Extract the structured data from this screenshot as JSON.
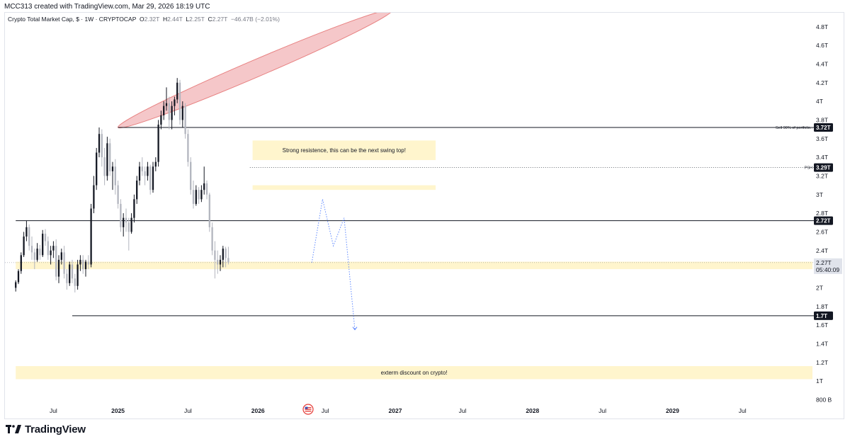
{
  "header": {
    "attribution": "MCC313 created with TradingView.com, Mar 29, 2026 18:19 UTC"
  },
  "legend": {
    "symbol": "Crypto Total Market Cap, $ · 1W · CRYPTOCAP",
    "open_key": "O",
    "open_value": "2.32T",
    "high_key": "H",
    "high_value": "2.44T",
    "low_key": "L",
    "low_value": "2.25T",
    "close_key": "C",
    "close_value": "2.27T",
    "change": "−46.47B (−2.01%)"
  },
  "colors": {
    "up": "#131722",
    "down": "#b2b5be",
    "zone": "#fff3c4",
    "ellipse": "#f5c2c4",
    "ellipse_stroke": "#e57373",
    "projection": "#2962ff"
  },
  "chart_data": {
    "type": "candlestick",
    "timeframe": "1W",
    "price_axis": {
      "ticks": [
        {
          "value": 4.8,
          "label": "4.8T"
        },
        {
          "value": 4.6,
          "label": "4.6T"
        },
        {
          "value": 4.4,
          "label": "4.4T"
        },
        {
          "value": 4.2,
          "label": "4.2T"
        },
        {
          "value": 4.0,
          "label": "4T"
        },
        {
          "value": 3.8,
          "label": "3.8T"
        },
        {
          "value": 3.6,
          "label": "3.6T"
        },
        {
          "value": 3.4,
          "label": "3.4T"
        },
        {
          "value": 3.2,
          "label": "3.2T"
        },
        {
          "value": 3.0,
          "label": "3T"
        },
        {
          "value": 2.8,
          "label": "2.8T"
        },
        {
          "value": 2.6,
          "label": "2.6T"
        },
        {
          "value": 2.4,
          "label": "2.4T"
        },
        {
          "value": 2.0,
          "label": "2T"
        },
        {
          "value": 1.8,
          "label": "1.8T"
        },
        {
          "value": 1.6,
          "label": "1.6T"
        },
        {
          "value": 1.4,
          "label": "1.4T"
        },
        {
          "value": 1.2,
          "label": "1.2T"
        },
        {
          "value": 1.0,
          "label": "1T"
        },
        {
          "value": 0.8,
          "label": "800 B"
        }
      ],
      "range": [
        0.75,
        4.95
      ]
    },
    "time_axis": {
      "ticks": [
        {
          "label": "Jul",
          "t": 14
        },
        {
          "label": "2025",
          "t": 38
        },
        {
          "label": "Jul",
          "t": 64
        },
        {
          "label": "2026",
          "t": 90
        },
        {
          "label": "Jul",
          "t": 115
        },
        {
          "label": "2027",
          "t": 141
        },
        {
          "label": "Jul",
          "t": 166
        },
        {
          "label": "2028",
          "t": 192
        },
        {
          "label": "Jul",
          "t": 218
        },
        {
          "label": "2029",
          "t": 244
        },
        {
          "label": "Jul",
          "t": 270
        }
      ],
      "range": [
        -4,
        296
      ]
    },
    "price_labels": [
      {
        "value": 3.72,
        "label": "3.72T",
        "note": "Sell 90% of portfolio.."
      },
      {
        "value": 3.29,
        "label": "3.29T",
        "note": "PSH"
      },
      {
        "value": 2.72,
        "label": "2.72T",
        "note": ""
      },
      {
        "value": 1.7,
        "label": "1.7T",
        "note": ""
      }
    ],
    "last_price": {
      "value": 2.27,
      "label": "2.27T",
      "countdown": "05:40:09"
    },
    "horizontal_lines": [
      {
        "value": 3.72,
        "t_start": 38,
        "style": "solid"
      },
      {
        "value": 3.29,
        "t_start": 87,
        "style": "dotted"
      },
      {
        "value": 2.72,
        "t_start": 0,
        "style": "solid"
      },
      {
        "value": 1.7,
        "t_start": 21,
        "style": "solid"
      }
    ],
    "zones": [
      {
        "top": 3.58,
        "bottom": 3.37,
        "t_start": 88,
        "t_end": 156,
        "text": "Strong resistence, this can be the next swing top!"
      },
      {
        "top": 3.1,
        "bottom": 3.05,
        "t_start": 88,
        "t_end": 156,
        "text": ""
      },
      {
        "top": 2.28,
        "bottom": 2.2,
        "t_start": 0,
        "t_end": 296,
        "text": ""
      },
      {
        "top": 1.16,
        "bottom": 1.02,
        "t_start": 0,
        "t_end": 296,
        "text": "exterm discount on crypto!"
      }
    ],
    "ellipse": {
      "t1": 38,
      "p1": 3.72,
      "t2": 140,
      "p2": 4.98
    },
    "projection_path": [
      [
        110,
        2.27
      ],
      [
        114,
        2.95
      ],
      [
        118,
        2.45
      ],
      [
        122,
        2.75
      ],
      [
        126,
        1.55
      ]
    ],
    "candles": [
      [
        2.0,
        2.08,
        1.96,
        2.06
      ],
      [
        2.06,
        2.2,
        2.04,
        2.18
      ],
      [
        2.18,
        2.38,
        2.15,
        2.35
      ],
      [
        2.35,
        2.6,
        2.33,
        2.55
      ],
      [
        2.55,
        2.72,
        2.5,
        2.65
      ],
      [
        2.65,
        2.68,
        2.4,
        2.45
      ],
      [
        2.45,
        2.55,
        2.3,
        2.38
      ],
      [
        2.38,
        2.42,
        2.2,
        2.3
      ],
      [
        2.3,
        2.48,
        2.28,
        2.42
      ],
      [
        2.42,
        2.46,
        2.3,
        2.35
      ],
      [
        2.35,
        2.62,
        2.33,
        2.58
      ],
      [
        2.58,
        2.63,
        2.45,
        2.5
      ],
      [
        2.5,
        2.55,
        2.3,
        2.35
      ],
      [
        2.35,
        2.45,
        2.25,
        2.4
      ],
      [
        2.4,
        2.5,
        2.32,
        2.45
      ],
      [
        2.45,
        2.52,
        2.08,
        2.12
      ],
      [
        2.12,
        2.35,
        2.05,
        2.3
      ],
      [
        2.3,
        2.42,
        2.25,
        2.38
      ],
      [
        2.38,
        2.45,
        2.1,
        2.15
      ],
      [
        2.15,
        2.2,
        1.98,
        2.05
      ],
      [
        2.05,
        2.28,
        2.02,
        2.25
      ],
      [
        2.25,
        2.3,
        2.05,
        2.1
      ],
      [
        2.1,
        2.15,
        1.95,
        2.02
      ],
      [
        2.02,
        2.3,
        1.98,
        2.25
      ],
      [
        2.25,
        2.35,
        2.18,
        2.3
      ],
      [
        2.3,
        2.35,
        2.15,
        2.2
      ],
      [
        2.2,
        2.3,
        2.12,
        2.28
      ],
      [
        2.28,
        2.35,
        2.2,
        2.25
      ],
      [
        2.25,
        2.9,
        2.22,
        2.85
      ],
      [
        2.85,
        3.2,
        2.8,
        3.1
      ],
      [
        3.1,
        3.5,
        3.05,
        3.45
      ],
      [
        3.45,
        3.72,
        3.4,
        3.65
      ],
      [
        3.65,
        3.7,
        3.3,
        3.4
      ],
      [
        3.4,
        3.5,
        3.1,
        3.2
      ],
      [
        3.2,
        3.62,
        3.15,
        3.55
      ],
      [
        3.55,
        3.6,
        3.2,
        3.25
      ],
      [
        3.25,
        3.35,
        3.05,
        3.3
      ],
      [
        3.3,
        3.38,
        3.0,
        3.1
      ],
      [
        3.1,
        3.15,
        2.85,
        2.9
      ],
      [
        2.9,
        2.95,
        2.6,
        2.65
      ],
      [
        2.65,
        2.8,
        2.55,
        2.75
      ],
      [
        2.75,
        2.85,
        2.6,
        2.7
      ],
      [
        2.7,
        2.75,
        2.4,
        2.6
      ],
      [
        2.6,
        2.8,
        2.58,
        2.75
      ],
      [
        2.75,
        3.0,
        2.7,
        2.95
      ],
      [
        2.95,
        3.2,
        2.9,
        3.15
      ],
      [
        3.15,
        3.35,
        3.1,
        3.3
      ],
      [
        3.3,
        3.4,
        3.2,
        3.25
      ],
      [
        3.25,
        3.3,
        3.1,
        3.2
      ],
      [
        3.2,
        3.35,
        3.15,
        3.3
      ],
      [
        3.3,
        3.32,
        3.0,
        3.05
      ],
      [
        3.05,
        3.35,
        3.02,
        3.3
      ],
      [
        3.3,
        3.4,
        3.25,
        3.35
      ],
      [
        3.35,
        3.8,
        3.3,
        3.75
      ],
      [
        3.75,
        3.9,
        3.7,
        3.85
      ],
      [
        3.85,
        4.0,
        3.8,
        3.95
      ],
      [
        3.95,
        4.15,
        3.9,
        3.98
      ],
      [
        3.98,
        4.05,
        3.7,
        3.8
      ],
      [
        3.8,
        4.0,
        3.7,
        3.95
      ],
      [
        3.95,
        4.05,
        3.85,
        4.02
      ],
      [
        4.02,
        4.25,
        3.98,
        4.2
      ],
      [
        4.2,
        4.23,
        3.75,
        3.8
      ],
      [
        3.8,
        4.0,
        3.72,
        3.95
      ],
      [
        3.95,
        3.98,
        3.6,
        3.65
      ],
      [
        3.65,
        3.7,
        3.3,
        3.35
      ],
      [
        3.35,
        3.4,
        3.0,
        3.05
      ],
      [
        3.05,
        3.15,
        2.85,
        2.9
      ],
      [
        2.9,
        3.1,
        2.88,
        3.05
      ],
      [
        3.05,
        3.08,
        2.9,
        2.95
      ],
      [
        2.95,
        3.1,
        2.92,
        3.05
      ],
      [
        3.05,
        3.3,
        3.0,
        3.12
      ],
      [
        3.12,
        3.15,
        2.95,
        3.0
      ],
      [
        3.0,
        3.02,
        2.6,
        2.65
      ],
      [
        2.65,
        2.7,
        2.35,
        2.4
      ],
      [
        2.4,
        2.5,
        2.1,
        2.3
      ],
      [
        2.3,
        2.4,
        2.15,
        2.25
      ],
      [
        2.25,
        2.35,
        2.18,
        2.3
      ],
      [
        2.3,
        2.45,
        2.22,
        2.42
      ],
      [
        2.42,
        2.44,
        2.22,
        2.32
      ],
      [
        2.32,
        2.44,
        2.25,
        2.27
      ]
    ]
  },
  "footer": {
    "brand": "TradingView"
  }
}
